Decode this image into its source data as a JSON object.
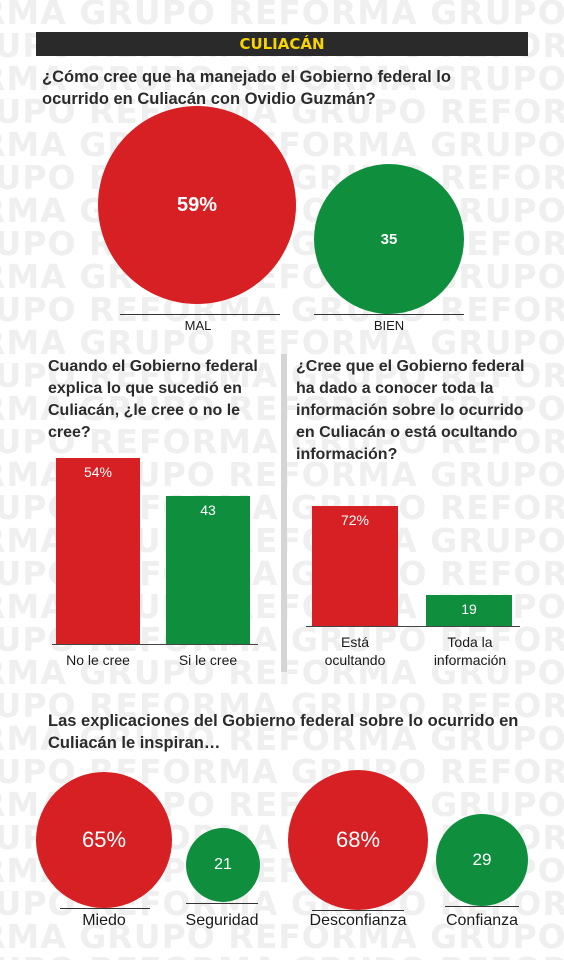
{
  "watermark": {
    "rows": [
      "RMA  GRUPO  REFORMA  GRUPO  REFORMA  GRUPO",
      "GRUPO  REFORMA  GRUPO  REFORMA  GRUPO  REFORMA"
    ]
  },
  "header": {
    "title": "CULIACÁN"
  },
  "section1": {
    "question": "¿Cómo cree que ha manejado el Gobierno federal lo ocurrido en Culiacán con Ovidio Guzmán?",
    "items": [
      {
        "label": "MAL",
        "value_label": "59%",
        "value": 59
      },
      {
        "label": "BIEN",
        "value_label": "35",
        "value": 35
      }
    ]
  },
  "section2": {
    "question": "Cuando el Gobierno federal explica lo que sucedió en Culiacán, ¿le cree o no le cree?",
    "items": [
      {
        "label": "No le cree",
        "value_label": "54%",
        "value": 54
      },
      {
        "label": "Si le cree",
        "value_label": "43",
        "value": 43
      }
    ]
  },
  "section3": {
    "question": "¿Cree que el Gobierno federal ha dado a conocer toda la información sobre lo ocurrido en Culiacán o está ocultando información?",
    "items": [
      {
        "label": "Está ocultando",
        "value_label": "72%",
        "value": 72
      },
      {
        "label": "Toda la información",
        "value_label": "19",
        "value": 19
      }
    ]
  },
  "section4": {
    "question": "Las explicaciones del Gobierno federal sobre lo ocurrido en Culiacán le inspiran…",
    "items": [
      {
        "label": "Miedo",
        "value_label": "65%",
        "value": 65
      },
      {
        "label": "Seguridad",
        "value_label": "21",
        "value": 21
      },
      {
        "label": "Desconfianza",
        "value_label": "68%",
        "value": 68
      },
      {
        "label": "Confianza",
        "value_label": "29",
        "value": 29
      }
    ]
  },
  "colors": {
    "red": "#d62023",
    "green": "#0f8f3e",
    "header_bg": "#2a2a2a",
    "header_text": "#f5d400"
  },
  "chart_data": [
    {
      "type": "bubble",
      "title": "¿Cómo cree que ha manejado el Gobierno federal lo ocurrido en Culiacán con Ovidio Guzmán?",
      "categories": [
        "MAL",
        "BIEN"
      ],
      "values": [
        59,
        35
      ],
      "unit": "%"
    },
    {
      "type": "bar",
      "title": "Cuando el Gobierno federal explica lo que sucedió en Culiacán, ¿le cree o no le cree?",
      "categories": [
        "No le cree",
        "Si le cree"
      ],
      "values": [
        54,
        43
      ],
      "unit": "%"
    },
    {
      "type": "bar",
      "title": "¿Cree que el Gobierno federal ha dado a conocer toda la información sobre lo ocurrido en Culiacán o está ocultando información?",
      "categories": [
        "Está ocultando",
        "Toda la información"
      ],
      "values": [
        72,
        19
      ],
      "unit": "%"
    },
    {
      "type": "bubble",
      "title": "Las explicaciones del Gobierno federal sobre lo ocurrido en Culiacán le inspiran…",
      "categories": [
        "Miedo",
        "Seguridad",
        "Desconfianza",
        "Confianza"
      ],
      "values": [
        65,
        21,
        68,
        29
      ],
      "unit": "%"
    }
  ]
}
